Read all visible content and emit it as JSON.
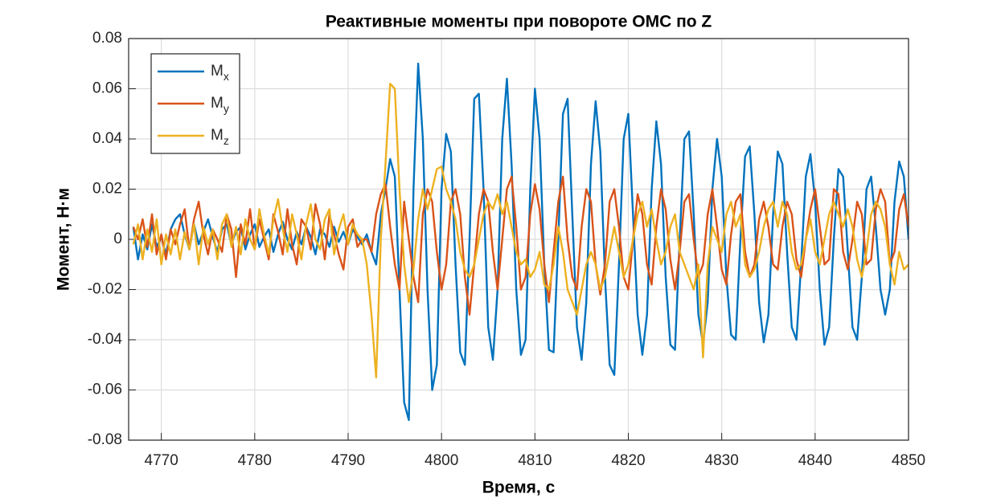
{
  "chart_data": {
    "type": "line",
    "title": "Реактивные моменты при повороте ОМС по Z",
    "x_label": "Время, с",
    "y_label": "Момент, Н·м",
    "xlim": [
      4766.5,
      4850
    ],
    "xticks": [
      4770,
      4780,
      4790,
      4800,
      4810,
      4820,
      4830,
      4840,
      4850
    ],
    "ylim": [
      -0.08,
      0.08
    ],
    "yticks": [
      -0.08,
      -0.06,
      -0.04,
      -0.02,
      0,
      0.02,
      0.04,
      0.06,
      0.08
    ],
    "grid": true,
    "legend": "upper left",
    "x": [
      4767,
      4767.5,
      4768,
      4768.5,
      4769,
      4769.5,
      4770,
      4770.5,
      4771,
      4771.5,
      4772,
      4772.5,
      4773,
      4773.5,
      4774,
      4774.5,
      4775,
      4775.5,
      4776,
      4776.5,
      4777,
      4777.5,
      4778,
      4778.5,
      4779,
      4779.5,
      4780,
      4780.5,
      4781,
      4781.5,
      4782,
      4782.5,
      4783,
      4783.5,
      4784,
      4784.5,
      4785,
      4785.5,
      4786,
      4786.5,
      4787,
      4787.5,
      4788,
      4788.5,
      4789,
      4789.5,
      4790,
      4790.5,
      4791,
      4791.5,
      4792,
      4792.5,
      4793,
      4793.5,
      4794,
      4794.5,
      4795,
      4795.5,
      4796,
      4796.5,
      4797,
      4797.5,
      4798,
      4798.5,
      4799,
      4799.5,
      4800,
      4800.5,
      4801,
      4801.5,
      4802,
      4802.5,
      4803,
      4803.5,
      4804,
      4804.5,
      4805,
      4805.5,
      4806,
      4806.5,
      4807,
      4807.5,
      4808,
      4808.5,
      4809,
      4809.5,
      4810,
      4810.5,
      4811,
      4811.5,
      4812,
      4812.5,
      4813,
      4813.5,
      4814,
      4814.5,
      4815,
      4815.5,
      4816,
      4816.5,
      4817,
      4817.5,
      4818,
      4818.5,
      4819,
      4819.5,
      4820,
      4820.5,
      4821,
      4821.5,
      4822,
      4822.5,
      4823,
      4823.5,
      4824,
      4824.5,
      4825,
      4825.5,
      4826,
      4826.5,
      4827,
      4827.5,
      4828,
      4828.5,
      4829,
      4829.5,
      4830,
      4830.5,
      4831,
      4831.5,
      4832,
      4832.5,
      4833,
      4833.5,
      4834,
      4834.5,
      4835,
      4835.5,
      4836,
      4836.5,
      4837,
      4837.5,
      4838,
      4838.5,
      4839,
      4839.5,
      4840,
      4840.5,
      4841,
      4841.5,
      4842,
      4842.5,
      4843,
      4843.5,
      4844,
      4844.5,
      4845,
      4845.5,
      4846,
      4846.5,
      4847,
      4847.5,
      4848,
      4848.5,
      4849,
      4849.5,
      4850
    ],
    "series": [
      {
        "name": "Mx",
        "color": "#0072BD",
        "values": [
          0.005,
          -0.008,
          0.002,
          -0.004,
          0.006,
          -0.003,
          0.001,
          -0.006,
          0.004,
          0.008,
          0.01,
          0.002,
          -0.004,
          0.006,
          -0.002,
          0.003,
          0.008,
          0.001,
          -0.005,
          0.004,
          0.006,
          -0.002,
          0.003,
          0.005,
          -0.004,
          0.002,
          0.006,
          -0.003,
          0.001,
          0.004,
          -0.005,
          0.002,
          0.007,
          0.0,
          -0.004,
          0.003,
          -0.002,
          0.005,
          0.001,
          -0.006,
          0.004,
          0.002,
          -0.003,
          0.005,
          -0.001,
          0.003,
          -0.002,
          0.004,
          0.001,
          -0.002,
          0.002,
          -0.005,
          -0.01,
          0.01,
          0.02,
          0.032,
          0.025,
          -0.02,
          -0.065,
          -0.072,
          0.02,
          0.07,
          0.04,
          -0.02,
          -0.06,
          -0.05,
          0.02,
          0.042,
          0.035,
          -0.01,
          -0.045,
          -0.05,
          0.0,
          0.056,
          0.058,
          0.02,
          -0.035,
          -0.048,
          -0.02,
          0.04,
          0.064,
          0.03,
          -0.02,
          -0.046,
          -0.04,
          0.02,
          0.06,
          0.04,
          -0.01,
          -0.044,
          -0.045,
          0.0,
          0.05,
          0.056,
          0.01,
          -0.035,
          -0.048,
          -0.025,
          0.03,
          0.055,
          0.035,
          -0.015,
          -0.05,
          -0.054,
          -0.01,
          0.04,
          0.05,
          0.01,
          -0.03,
          -0.046,
          -0.03,
          0.02,
          0.047,
          0.03,
          -0.015,
          -0.042,
          -0.044,
          0.0,
          0.04,
          0.043,
          0.01,
          -0.03,
          -0.042,
          -0.025,
          0.02,
          0.04,
          0.025,
          -0.015,
          -0.038,
          -0.04,
          0.0,
          0.033,
          0.037,
          0.01,
          -0.025,
          -0.041,
          -0.03,
          0.01,
          0.035,
          0.03,
          -0.005,
          -0.035,
          -0.04,
          -0.01,
          0.025,
          0.034,
          0.015,
          -0.02,
          -0.042,
          -0.035,
          0.0,
          0.028,
          0.025,
          -0.005,
          -0.035,
          -0.04,
          -0.015,
          0.02,
          0.025,
          0.005,
          -0.02,
          -0.03,
          -0.02,
          0.015,
          0.031,
          0.025,
          0.0
        ]
      },
      {
        "name": "My",
        "color": "#D95319",
        "values": [
          0.005,
          0.0,
          0.008,
          -0.003,
          0.01,
          -0.006,
          0.002,
          -0.008,
          0.004,
          -0.002,
          0.006,
          0.012,
          -0.004,
          0.008,
          0.015,
          0.002,
          -0.006,
          0.004,
          0.0,
          -0.005,
          0.01,
          0.004,
          -0.015,
          0.006,
          -0.002,
          0.012,
          -0.004,
          0.008,
          0.0,
          -0.008,
          0.01,
          0.003,
          -0.006,
          0.012,
          -0.002,
          -0.01,
          0.008,
          0.005,
          -0.004,
          0.014,
          0.006,
          -0.008,
          0.01,
          0.002,
          -0.006,
          -0.012,
          0.005,
          0.008,
          -0.003,
          0.0,
          0.0,
          -0.005,
          0.01,
          0.018,
          0.022,
          0.005,
          -0.01,
          -0.02,
          0.015,
          0.0,
          -0.015,
          -0.025,
          0.01,
          0.02,
          0.015,
          -0.005,
          -0.02,
          -0.01,
          0.015,
          0.02,
          0.01,
          -0.015,
          -0.03,
          -0.01,
          0.01,
          0.02,
          0.015,
          -0.005,
          -0.02,
          0.0,
          0.02,
          0.025,
          0.005,
          -0.02,
          -0.015,
          0.01,
          0.022,
          0.012,
          -0.01,
          -0.025,
          -0.005,
          0.015,
          0.025,
          0.0,
          -0.015,
          -0.02,
          0.005,
          0.02,
          0.015,
          -0.01,
          -0.022,
          -0.01,
          0.015,
          0.02,
          0.005,
          -0.015,
          -0.02,
          0.0,
          0.018,
          0.01,
          -0.01,
          -0.018,
          0.005,
          0.02,
          0.012,
          -0.008,
          -0.02,
          -0.005,
          0.015,
          0.018,
          0.0,
          -0.015,
          -0.01,
          0.01,
          0.02,
          0.005,
          -0.012,
          -0.018,
          0.002,
          0.015,
          0.018,
          -0.005,
          -0.015,
          -0.01,
          0.008,
          0.015,
          0.005,
          -0.01,
          -0.012,
          0.005,
          0.015,
          0.01,
          -0.008,
          -0.015,
          0.0,
          0.012,
          0.02,
          0.005,
          -0.01,
          -0.008,
          0.02,
          0.018,
          -0.005,
          -0.012,
          0.0,
          0.015,
          0.01,
          -0.01,
          -0.008,
          0.012,
          0.02,
          0.015,
          -0.01,
          -0.005,
          0.012,
          0.018,
          0.005
        ]
      },
      {
        "name": "Mz",
        "color": "#EDB120",
        "values": [
          -0.002,
          0.006,
          -0.008,
          0.004,
          -0.005,
          0.008,
          -0.01,
          0.002,
          -0.006,
          0.004,
          -0.008,
          0.003,
          -0.004,
          0.006,
          -0.01,
          0.005,
          -0.002,
          0.004,
          -0.008,
          0.006,
          0.01,
          -0.003,
          0.005,
          -0.006,
          0.008,
          0.0,
          -0.004,
          0.012,
          0.002,
          -0.006,
          0.008,
          0.016,
          0.004,
          -0.005,
          0.01,
          0.002,
          -0.008,
          0.006,
          0.014,
          0.0,
          -0.004,
          0.008,
          0.012,
          -0.006,
          0.004,
          0.01,
          -0.002,
          0.006,
          0.002,
          0.0,
          -0.01,
          -0.03,
          -0.055,
          0.0,
          0.03,
          0.062,
          0.06,
          0.02,
          -0.01,
          -0.025,
          -0.012,
          0.008,
          0.02,
          0.012,
          0.02,
          0.028,
          0.029,
          0.02,
          0.015,
          0.008,
          -0.005,
          -0.012,
          -0.015,
          -0.01,
          0.0,
          0.01,
          0.015,
          0.012,
          0.018,
          0.01,
          0.015,
          0.005,
          -0.005,
          -0.01,
          -0.008,
          -0.015,
          -0.012,
          -0.005,
          -0.018,
          -0.02,
          -0.01,
          0.005,
          -0.005,
          -0.02,
          -0.025,
          -0.03,
          -0.02,
          -0.01,
          -0.005,
          -0.01,
          -0.02,
          -0.015,
          -0.005,
          0.005,
          -0.005,
          -0.015,
          -0.01,
          0.0,
          0.01,
          0.015,
          0.005,
          0.012,
          0.0,
          -0.01,
          -0.005,
          0.005,
          0.01,
          -0.005,
          -0.01,
          -0.015,
          -0.02,
          -0.01,
          -0.047,
          -0.01,
          0.005,
          0.0,
          -0.005,
          0.01,
          0.015,
          0.005,
          0.01,
          -0.01,
          -0.015,
          -0.012,
          -0.005,
          0.005,
          0.012,
          0.015,
          0.005,
          0.015,
          0.01,
          -0.005,
          -0.012,
          -0.01,
          0.0,
          0.008,
          -0.005,
          -0.01,
          0.0,
          0.01,
          0.015,
          0.01,
          0.005,
          0.012,
          0.005,
          -0.008,
          -0.015,
          -0.005,
          0.01,
          0.015,
          0.012,
          0.005,
          -0.01,
          -0.018,
          -0.005,
          -0.012,
          -0.01
        ]
      }
    ]
  }
}
